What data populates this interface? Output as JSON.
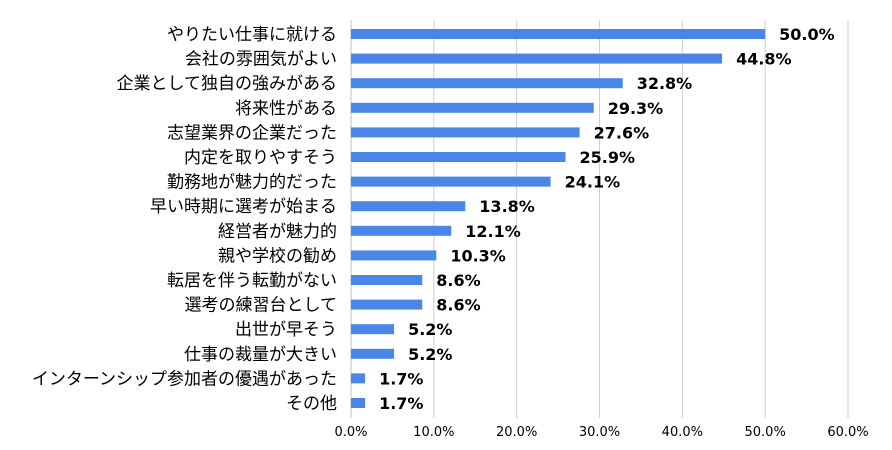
{
  "chart_data": {
    "type": "bar",
    "orientation": "horizontal",
    "title": "",
    "xlabel": "",
    "ylabel": "",
    "xlim": [
      0,
      60
    ],
    "x_ticks": [
      "0.0%",
      "10.0%",
      "20.0%",
      "30.0%",
      "40.0%",
      "50.0%",
      "60.0%"
    ],
    "grid": "vertical",
    "legend": "none",
    "bar_color": "#4a86e8",
    "categories": [
      "やりたい仕事に就ける",
      "会社の雰囲気がよい",
      "企業として独自の強みがある",
      "将来性がある",
      "志望業界の企業だった",
      "内定を取りやすそう",
      "勤務地が魅力的だった",
      "早い時期に選考が始まる",
      "経営者が魅力的",
      "親や学校の勧め",
      "転居を伴う転勤がない",
      "選考の練習台として",
      "出世が早そう",
      "仕事の裁量が大きい",
      "インターンシップ参加者の優遇があった",
      "その他"
    ],
    "values": [
      50.0,
      44.8,
      32.8,
      29.3,
      27.6,
      25.9,
      24.1,
      13.8,
      12.1,
      10.3,
      8.6,
      8.6,
      5.2,
      5.2,
      1.7,
      1.7
    ],
    "value_labels": [
      "50.0%",
      "44.8%",
      "32.8%",
      "29.3%",
      "27.6%",
      "25.9%",
      "24.1%",
      "13.8%",
      "12.1%",
      "10.3%",
      "8.6%",
      "8.6%",
      "5.2%",
      "5.2%",
      "1.7%",
      "1.7%"
    ]
  }
}
